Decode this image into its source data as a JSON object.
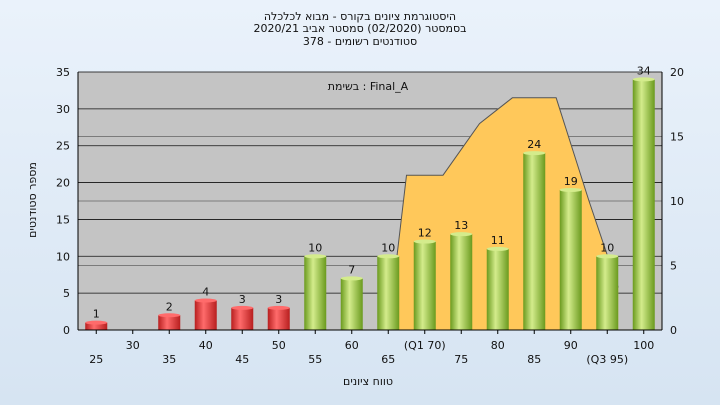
{
  "title_lines": [
    "היסטוגרמת ציונים בקורס - מבוא לכלכלה",
    "בסמסטר  (02/2020)  סמסטר אביב 2020/21",
    "סטודנטים רשומים - 378"
  ],
  "colors": {
    "plot_bg": "#c4c4c4",
    "area_fill": "#ffc85a",
    "bar_fail_light": "#ff6b6b",
    "bar_fail_dark": "#b81f1f",
    "bar_pass_light": "#d4ec8c",
    "bar_pass_dark": "#6a9a1e"
  },
  "chart_data": {
    "type": "bar",
    "annotation": "בשימת : Final_A",
    "ylabel_left": "מספר סטודנטים",
    "xlabel": "טווח ציונים",
    "ylim_left": [
      0,
      35
    ],
    "ylim_right": [
      0,
      20
    ],
    "yticks_left": [
      "0",
      "5",
      "10",
      "15",
      "20",
      "25",
      "30",
      "35"
    ],
    "yticks_right": [
      "0",
      "5",
      "10",
      "15",
      "20"
    ],
    "grid": true,
    "categories": [
      "25",
      "30",
      "35",
      "40",
      "45",
      "50",
      "55",
      "60",
      "65",
      "(Q1 70)",
      "75",
      "80",
      "85",
      "90",
      "(Q3 95)",
      "100"
    ],
    "values": [
      1,
      0,
      2,
      4,
      3,
      3,
      10,
      7,
      10,
      12,
      13,
      11,
      24,
      19,
      10,
      34
    ],
    "value_labels": [
      "1",
      "",
      "2",
      "4",
      "3",
      "3",
      "10",
      "7",
      "10",
      "12",
      "13",
      "11",
      "24",
      "19",
      "10",
      "34"
    ],
    "fail_threshold": 50,
    "area_series": {
      "points": [
        {
          "x": 8.5,
          "y": 0
        },
        {
          "x": 9.0,
          "y": 12
        },
        {
          "x": 10.0,
          "y": 12
        },
        {
          "x": 11.0,
          "y": 16
        },
        {
          "x": 11.9,
          "y": 18
        },
        {
          "x": 13.1,
          "y": 18
        },
        {
          "x": 14.0,
          "y": 10
        },
        {
          "x": 14.8,
          "y": 3.3
        }
      ]
    }
  }
}
